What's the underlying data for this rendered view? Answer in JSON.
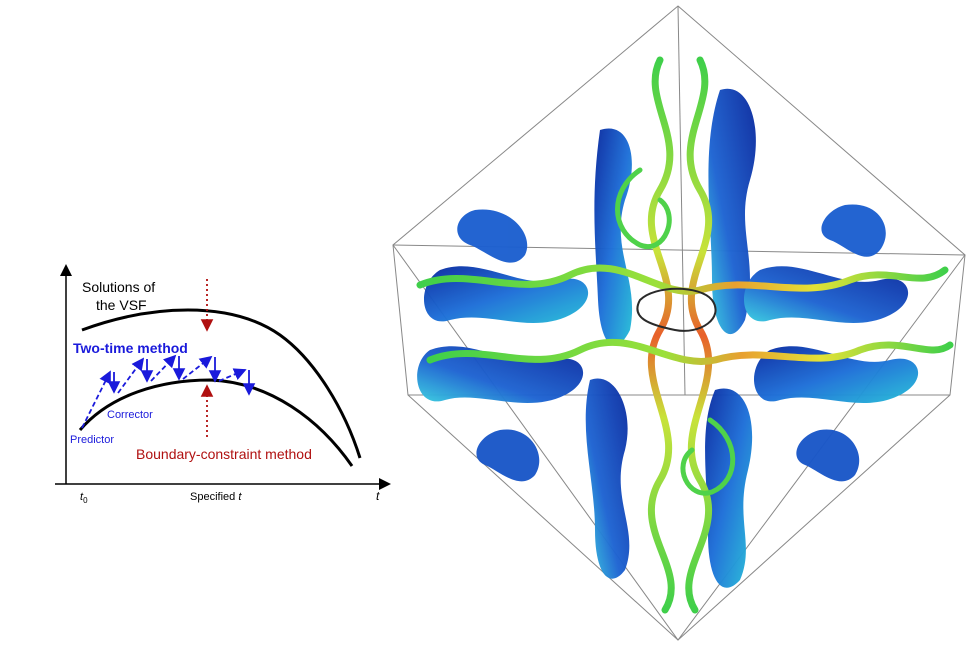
{
  "schematic": {
    "solutions_label_line1": "Solutions of",
    "solutions_label_line2": "the VSF",
    "two_time_label": "Two-time method",
    "corrector_label": "Corrector",
    "predictor_label": "Predictor",
    "boundary_label": "Boundary-constraint method",
    "x_axis_label": "t",
    "x_axis_origin": "t",
    "x_axis_origin_sub": "0",
    "specified_t_prefix": "Specified ",
    "specified_t_var": "t",
    "colors": {
      "two_time": "#1a1adb",
      "boundary": "#b01010",
      "curve": "#000000"
    }
  },
  "render": {
    "description_icon": "vortex-tube-isosurface-cube",
    "colormap": [
      "#0b2a9e",
      "#1f6fd6",
      "#2bc4d8",
      "#4fd24a",
      "#e8e23a",
      "#e8502a"
    ]
  }
}
